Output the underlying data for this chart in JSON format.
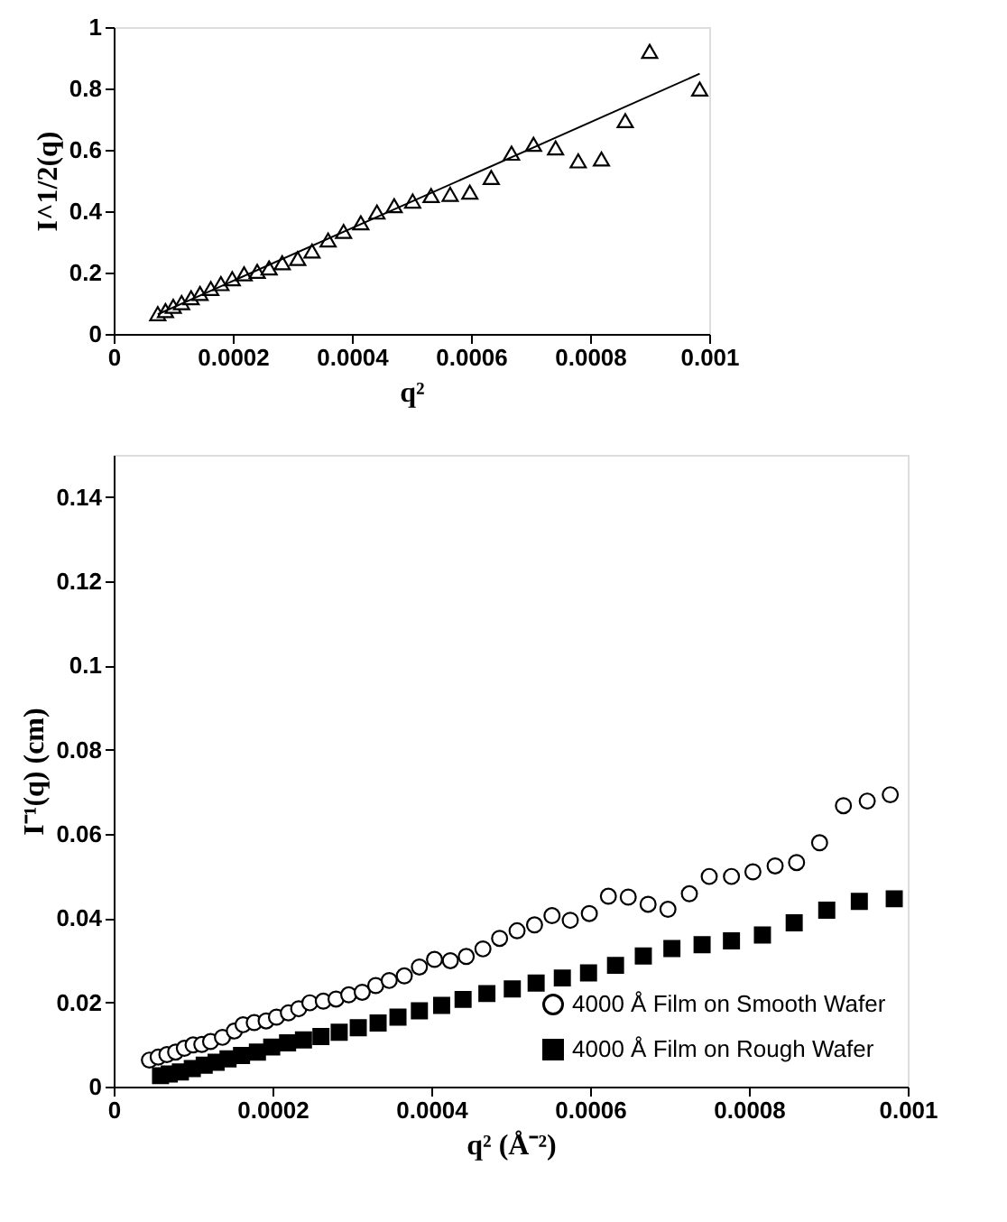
{
  "chart_data": [
    {
      "type": "scatter",
      "xlabel": "q²",
      "ylabel": "I^1/2(q)",
      "xlim": [
        0,
        0.001
      ],
      "ylim": [
        0,
        1
      ],
      "xticks": [
        0,
        0.0002,
        0.0004,
        0.0006,
        0.0008,
        0.001
      ],
      "yticks": [
        0,
        0.2,
        0.4,
        0.6,
        0.8,
        1
      ],
      "grid": false,
      "legend": false,
      "series": [
        {
          "marker": "triangle",
          "color": "#000000",
          "x": [
            7.4e-05,
            8.7e-05,
            0.0001,
            0.000114,
            0.00013,
            0.000145,
            0.000163,
            0.00018,
            0.000199,
            0.000219,
            0.000241,
            0.000261,
            0.000283,
            0.000309,
            0.000333,
            0.00036,
            0.000386,
            0.000415,
            0.000442,
            0.000471,
            0.000502,
            0.000533,
            0.000565,
            0.000598,
            0.000634,
            0.000668,
            0.000705,
            0.000742,
            0.00078,
            0.000819,
            0.000859,
            0.0009,
            0.000984
          ],
          "values": [
            0.066,
            0.076,
            0.09,
            0.102,
            0.118,
            0.132,
            0.148,
            0.164,
            0.18,
            0.196,
            0.204,
            0.215,
            0.232,
            0.246,
            0.27,
            0.306,
            0.334,
            0.362,
            0.397,
            0.418,
            0.433,
            0.451,
            0.455,
            0.462,
            0.51,
            0.589,
            0.618,
            0.606,
            0.564,
            0.57,
            0.695,
            0.921,
            0.798
          ]
        },
        {
          "type": "line",
          "marker": "none",
          "color": "#000000",
          "x": [
            7.4e-05,
            0.000984
          ],
          "values": [
            0.064,
            0.848
          ]
        }
      ]
    },
    {
      "type": "scatter",
      "xlabel": "q²  (Å⁻²)",
      "ylabel": "I⁻¹(q)   (cm)",
      "xlim": [
        0,
        0.001
      ],
      "ylim": [
        0,
        0.15
      ],
      "xticks": [
        0,
        0.0002,
        0.0004,
        0.0006,
        0.0008,
        0.001
      ],
      "yticks": [
        0,
        0.02,
        0.04,
        0.06,
        0.08,
        0.1,
        0.12,
        0.14
      ],
      "grid": false,
      "legend": "bottom right",
      "series": [
        {
          "name": "4000 Å Film on Smooth Wafer",
          "marker": "circle",
          "color": "#000000",
          "x": [
            4.5e-05,
            5.6e-05,
            6.7e-05,
            7.8e-05,
            8.9e-05,
            0.0001,
            0.000111,
            0.000122,
            0.000137,
            0.000152,
            0.000163,
            0.000177,
            0.000192,
            0.000205,
            0.00022,
            0.000233,
            0.000247,
            0.000264,
            0.00028,
            0.000296,
            0.000313,
            0.00033,
            0.000347,
            0.000366,
            0.000385,
            0.000404,
            0.000424,
            0.000444,
            0.000465,
            0.000486,
            0.000508,
            0.00053,
            0.000552,
            0.000575,
            0.000599,
            0.000623,
            0.000648,
            0.000673,
            0.000698,
            0.000725,
            0.00075,
            0.000778,
            0.000805,
            0.000833,
            0.00086,
            0.000889,
            0.000919,
            0.000949,
            0.000978
          ],
          "values": [
            0.0063,
            0.007,
            0.0076,
            0.0082,
            0.0091,
            0.0099,
            0.01,
            0.0107,
            0.0117,
            0.0132,
            0.0147,
            0.0152,
            0.0156,
            0.0165,
            0.0175,
            0.0185,
            0.0199,
            0.0203,
            0.0208,
            0.0218,
            0.0224,
            0.024,
            0.0252,
            0.0263,
            0.0284,
            0.0302,
            0.0299,
            0.0309,
            0.0327,
            0.0352,
            0.037,
            0.0384,
            0.0406,
            0.0395,
            0.0411,
            0.0452,
            0.045,
            0.0433,
            0.0421,
            0.0458,
            0.0499,
            0.0499,
            0.051,
            0.0524,
            0.0532,
            0.0579,
            0.0667,
            0.0678,
            0.0693
          ]
        },
        {
          "name": "4000 Å Film on Rough Wafer",
          "marker": "square",
          "color": "#000000",
          "x": [
            5.9e-05,
            7e-05,
            8.4e-05,
            9.9e-05,
            0.000114,
            0.000129,
            0.000144,
            0.000161,
            0.000181,
            0.000199,
            0.000219,
            0.000239,
            0.000261,
            0.000284,
            0.000308,
            0.000333,
            0.000358,
            0.000385,
            0.000413,
            0.00044,
            0.00047,
            0.000502,
            0.000532,
            0.000565,
            0.000598,
            0.000632,
            0.000667,
            0.000703,
            0.000741,
            0.000778,
            0.000817,
            0.000857,
            0.000898,
            0.000939,
            0.000983
          ],
          "values": [
            0.0026,
            0.003,
            0.0035,
            0.0043,
            0.0051,
            0.0058,
            0.0066,
            0.0074,
            0.0082,
            0.0094,
            0.0104,
            0.0111,
            0.0119,
            0.0129,
            0.014,
            0.0151,
            0.0165,
            0.018,
            0.0193,
            0.0207,
            0.0221,
            0.0232,
            0.0246,
            0.0258,
            0.027,
            0.0288,
            0.031,
            0.0328,
            0.0337,
            0.0346,
            0.036,
            0.0389,
            0.0419,
            0.044,
            0.0446
          ]
        }
      ]
    }
  ]
}
